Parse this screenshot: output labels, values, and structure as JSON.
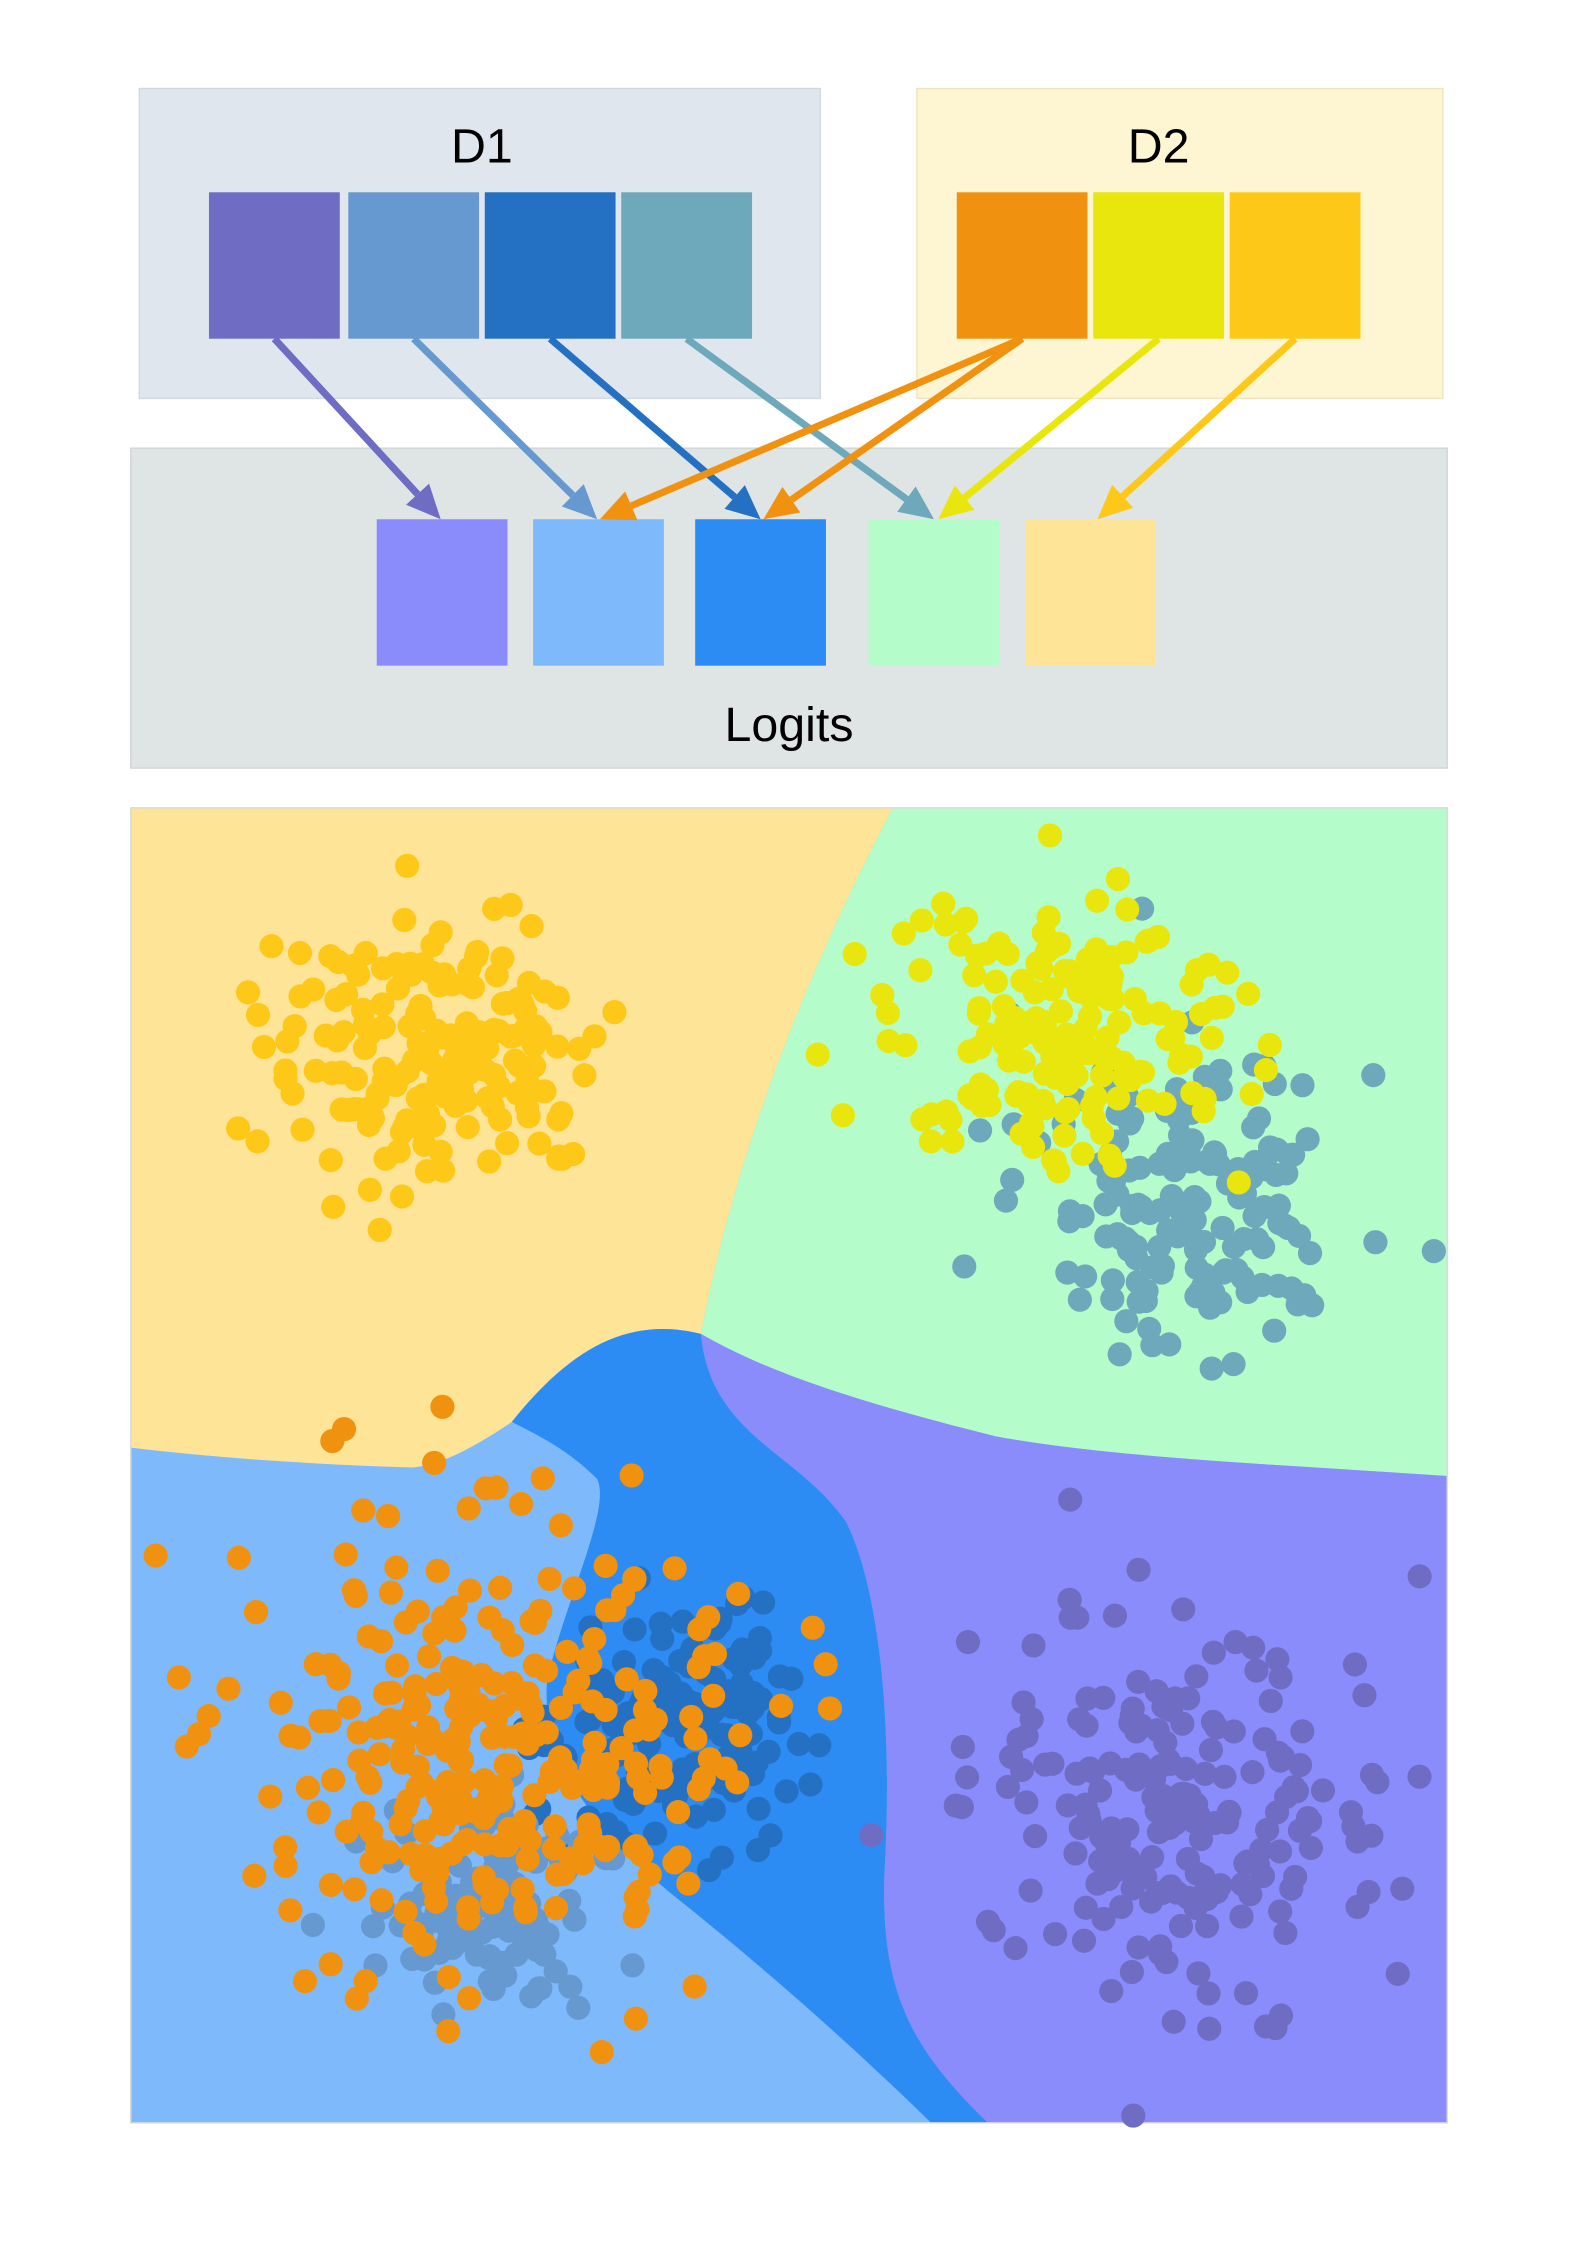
{
  "d1": {
    "label": "D1"
  },
  "d2": {
    "label": "D2"
  },
  "logits": {
    "label": "Logits"
  }
}
